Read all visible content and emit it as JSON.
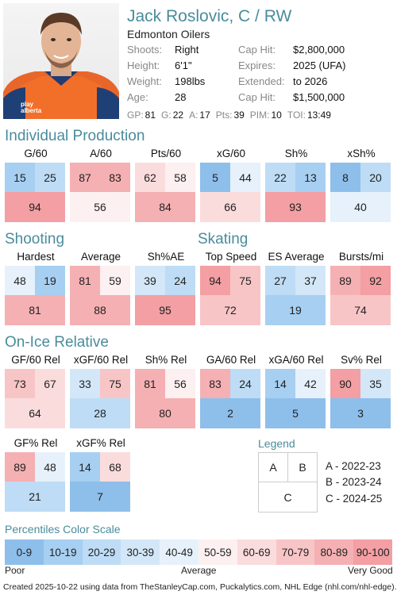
{
  "player": {
    "name": "Jack Roslovic, C / RW",
    "team": "Edmonton Oilers",
    "info_left": [
      {
        "label": "Shoots:",
        "value": "Right"
      },
      {
        "label": "Height:",
        "value": "6'1\""
      },
      {
        "label": "Weight:",
        "value": "198lbs"
      },
      {
        "label": "Age:",
        "value": "28"
      }
    ],
    "info_right": [
      {
        "label": "Cap Hit:",
        "value": "$2,800,000"
      },
      {
        "label": "Expires:",
        "value": "2025 (UFA)"
      },
      {
        "label": "Extended:",
        "value": "to 2026"
      },
      {
        "label": "Cap Hit:",
        "value": "$1,500,000"
      }
    ],
    "statline": [
      {
        "k": "GP:",
        "v": "81"
      },
      {
        "k": "G:",
        "v": "22"
      },
      {
        "k": "A:",
        "v": "17"
      },
      {
        "k": "Pts:",
        "v": "39"
      },
      {
        "k": "PIM:",
        "v": "10"
      },
      {
        "k": "TOI:",
        "v": "13:49"
      }
    ],
    "jersey_text": "play alberta"
  },
  "sections": {
    "production": "Individual Production",
    "shooting": "Shooting",
    "skating": "Skating",
    "onice": "On-Ice Relative"
  },
  "metrics": [
    {
      "label": "G/60",
      "a": 15,
      "b": 25,
      "c": 94
    },
    {
      "label": "A/60",
      "a": 87,
      "b": 83,
      "c": 56
    },
    {
      "label": "Pts/60",
      "a": 62,
      "b": 58,
      "c": 84
    },
    {
      "label": "xG/60",
      "a": 5,
      "b": 44,
      "c": 66
    },
    {
      "label": "Sh%",
      "a": 22,
      "b": 13,
      "c": 93
    },
    {
      "label": "xSh%",
      "a": 8,
      "b": 20,
      "c": 40
    },
    {
      "label": "Hardest",
      "a": 48,
      "b": 19,
      "c": 81
    },
    {
      "label": "Average",
      "a": 81,
      "b": 59,
      "c": 88
    },
    {
      "label": "Sh%AE",
      "a": 39,
      "b": 24,
      "c": 95
    },
    {
      "label": "Top Speed",
      "a": 94,
      "b": 75,
      "c": 72
    },
    {
      "label": "ES Average",
      "a": 27,
      "b": 37,
      "c": 19
    },
    {
      "label": "Bursts/mi",
      "a": 89,
      "b": 92,
      "c": 74
    },
    {
      "label": "GF/60 Rel",
      "a": 73,
      "b": 67,
      "c": 64
    },
    {
      "label": "xGF/60 Rel",
      "a": 33,
      "b": 75,
      "c": 28
    },
    {
      "label": "Sh% Rel",
      "a": 81,
      "b": 56,
      "c": 80
    },
    {
      "label": "GA/60 Rel",
      "a": 83,
      "b": 24,
      "c": 2
    },
    {
      "label": "xGA/60 Rel",
      "a": 14,
      "b": 42,
      "c": 5
    },
    {
      "label": "Sv% Rel",
      "a": 90,
      "b": 35,
      "c": 3
    },
    {
      "label": "GF% Rel",
      "a": 89,
      "b": 48,
      "c": 21
    },
    {
      "label": "xGF% Rel",
      "a": 14,
      "b": 68,
      "c": 7
    }
  ],
  "legend": {
    "title": "Legend",
    "a": "A",
    "b": "B",
    "c": "C",
    "items": [
      "A - 2022-23",
      "B - 2023-24",
      "C - 2024-25"
    ]
  },
  "scale": {
    "title": "Percentiles Color Scale",
    "bins": [
      "0-9",
      "10-19",
      "20-29",
      "30-39",
      "40-49",
      "50-59",
      "60-69",
      "70-79",
      "80-89",
      "90-100"
    ],
    "colors": [
      "#8ebfeb",
      "#a7cff1",
      "#bedcf5",
      "#d3e7f8",
      "#e6f1fb",
      "#fdf0f0",
      "#fbdcdd",
      "#f8c5c7",
      "#f5b0b3",
      "#f39fa3"
    ],
    "poor": "Poor",
    "average": "Average",
    "very_good": "Very Good"
  },
  "footer": "Created 2025-10-22 using data from TheStanleyCap.com, Puckalytics.com, NHL Edge (nhl.com/nhl-edge)."
}
